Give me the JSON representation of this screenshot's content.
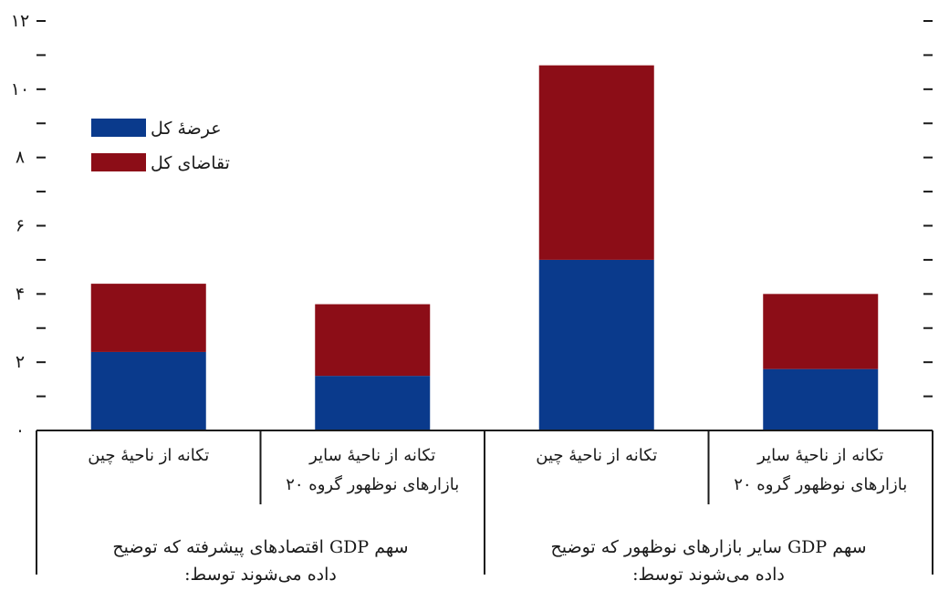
{
  "chart_data": {
    "type": "bar",
    "stacked": true,
    "categories": [
      [
        "تکانه از ناحیهٔ چین"
      ],
      [
        "تکانه از ناحیهٔ سایر",
        "بازارهای نوظهور گروه ۲۰"
      ],
      [
        "تکانه از ناحیهٔ چین"
      ],
      [
        "تکانه از ناحیهٔ سایر",
        "بازارهای نوظهور گروه ۲۰"
      ]
    ],
    "groups": [
      {
        "label": [
          "سهم GDP اقتصادهای پیشرفته که توضیح",
          "داده می‌شوند توسط:"
        ],
        "category_indices": [
          0,
          1
        ]
      },
      {
        "label": [
          "سهم GDP سایر بازارهای نوظهور که توضیح",
          "داده می‌شوند توسط:"
        ],
        "category_indices": [
          2,
          3
        ]
      }
    ],
    "series": [
      {
        "name": "عرضهٔ کل",
        "color": "#0a3a8c",
        "values": [
          2.3,
          1.6,
          5.0,
          1.8
        ]
      },
      {
        "name": "تقاضای کل",
        "color": "#8c0d17",
        "values": [
          2.0,
          2.1,
          5.7,
          2.2
        ]
      }
    ],
    "ylim": [
      0,
      12
    ],
    "y_tick_labels": [
      "۰",
      "۲",
      "۴",
      "۶",
      "۸",
      "۱۰",
      "۱۲"
    ],
    "y_tick_values": [
      0,
      2,
      4,
      6,
      8,
      10,
      12
    ],
    "legend_position": "top-left",
    "grid": false,
    "title": "",
    "xlabel": "",
    "ylabel": ""
  }
}
